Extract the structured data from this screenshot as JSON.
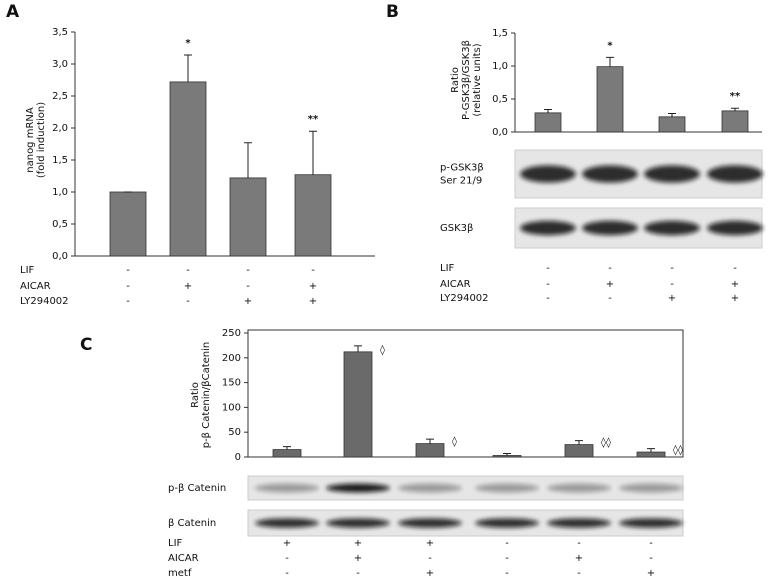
{
  "chart_data": [
    {
      "type": "bar",
      "panel": "A",
      "ylabel": [
        "nanog mRNA",
        "(fold induction)"
      ],
      "values": [
        1.0,
        2.72,
        1.22,
        1.27
      ],
      "errors": [
        0,
        0.42,
        0.55,
        0.68
      ],
      "annotations": [
        null,
        "*",
        null,
        "**"
      ],
      "color": "#7a7a7a",
      "frame": false,
      "ylim": [
        0,
        3.5
      ],
      "yticks": [
        {
          "value": 0,
          "label": "0,0"
        },
        {
          "value": 0.5,
          "label": "0,5"
        },
        {
          "value": 1,
          "label": "1,0"
        },
        {
          "value": 1.5,
          "label": "1,5"
        },
        {
          "value": 2,
          "label": "2,0"
        },
        {
          "value": 2.5,
          "label": "2,5"
        },
        {
          "value": 3,
          "label": "3,0"
        },
        {
          "value": 3.5,
          "label": "3,5"
        }
      ],
      "blots": [],
      "treatments": [
        {
          "name": "LIF",
          "marks": [
            "-",
            "-",
            "-",
            "-"
          ]
        },
        {
          "name": "AICAR",
          "marks": [
            "-",
            "+",
            "-",
            "+"
          ]
        },
        {
          "name": "LY294002",
          "marks": [
            "-",
            "-",
            "+",
            "+"
          ]
        }
      ]
    },
    {
      "type": "bar",
      "panel": "B",
      "ylabel": [
        "Ratio",
        "P-GSK3β/GSK3β",
        "(relative units)"
      ],
      "values": [
        0.29,
        0.99,
        0.23,
        0.32
      ],
      "errors": [
        0.05,
        0.14,
        0.05,
        0.04
      ],
      "annotations": [
        null,
        "*",
        null,
        "**"
      ],
      "color": "#7a7a7a",
      "frame": false,
      "ylim": [
        0,
        1.5
      ],
      "yticks": [
        {
          "value": 0,
          "label": "0,0"
        },
        {
          "value": 0.5,
          "label": "0,5"
        },
        {
          "value": 1,
          "label": "1,0"
        },
        {
          "value": 1.5,
          "label": "1,5"
        }
      ],
      "blots": [
        {
          "label": [
            "p-GSK3β",
            "Ser 21/9"
          ]
        },
        {
          "label": [
            "GSK3β"
          ]
        }
      ],
      "treatments": [
        {
          "name": "LIF",
          "marks": [
            "-",
            "-",
            "-",
            "-"
          ]
        },
        {
          "name": "AICAR",
          "marks": [
            "-",
            "+",
            "-",
            "+"
          ]
        },
        {
          "name": "LY294002",
          "marks": [
            "-",
            "-",
            "+",
            "+"
          ]
        }
      ]
    },
    {
      "type": "bar",
      "panel": "C",
      "ylabel": [
        "Ratio",
        "p-β Catenin/βCatenin"
      ],
      "values": [
        15,
        212,
        27,
        3,
        25,
        10
      ],
      "errors": [
        6,
        12,
        9,
        4,
        8,
        7
      ],
      "annotations": [
        null,
        "◊",
        "◊",
        null,
        "◊◊",
        "◊◊"
      ],
      "color": "#6a6a6a",
      "frame": true,
      "ylim": [
        0,
        250
      ],
      "yticks": [
        0,
        50,
        100,
        150,
        200,
        250
      ],
      "blots": [
        {
          "label": [
            "p-β Catenin"
          ]
        },
        {
          "label": [
            "β Catenin"
          ]
        }
      ],
      "treatments": [
        {
          "name": "LIF",
          "marks": [
            "+",
            "+",
            "+",
            "-",
            "-",
            "-"
          ]
        },
        {
          "name": "AICAR",
          "marks": [
            "-",
            "+",
            "-",
            "-",
            "+",
            "-"
          ]
        },
        {
          "name": "metf",
          "marks": [
            "-",
            "-",
            "+",
            "-",
            "-",
            "+"
          ]
        }
      ]
    }
  ]
}
